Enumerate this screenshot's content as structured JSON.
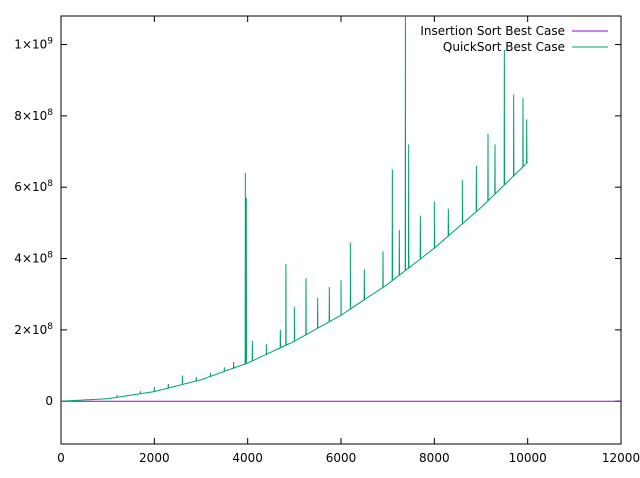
{
  "chart_data": {
    "type": "line",
    "title": "",
    "xlabel": "",
    "ylabel": "",
    "xlim": [
      0,
      12000
    ],
    "ylim": [
      -120000000,
      1080000000
    ],
    "grid": false,
    "legend_position": "top-right",
    "x_ticks": [
      {
        "value": 0,
        "label": "0"
      },
      {
        "value": 2000,
        "label": "2000"
      },
      {
        "value": 4000,
        "label": "4000"
      },
      {
        "value": 6000,
        "label": "6000"
      },
      {
        "value": 8000,
        "label": "8000"
      },
      {
        "value": 10000,
        "label": "10000"
      },
      {
        "value": 12000,
        "label": "12000"
      }
    ],
    "y_ticks": [
      {
        "value": 0,
        "label": "0"
      },
      {
        "value": 200000000,
        "mantissa": "2",
        "base": "×10",
        "exp": "8"
      },
      {
        "value": 400000000,
        "mantissa": "4",
        "base": "×10",
        "exp": "8"
      },
      {
        "value": 600000000,
        "mantissa": "6",
        "base": "×10",
        "exp": "8"
      },
      {
        "value": 800000000,
        "mantissa": "8",
        "base": "×10",
        "exp": "8"
      },
      {
        "value": 1000000000,
        "mantissa": "1",
        "base": "×10",
        "exp": "9"
      }
    ],
    "series": [
      {
        "name": "Insertion Sort Best Case",
        "color": "#9400d3",
        "x": [
          0,
          12000
        ],
        "y": [
          0,
          0
        ]
      },
      {
        "name": "QuickSort Best Case",
        "color": "#009e73",
        "x": [
          0,
          1000,
          2000,
          3000,
          4000,
          5000,
          6000,
          7000,
          8000,
          9000,
          10000
        ],
        "y": [
          0,
          7000000,
          27000000,
          60000000,
          107000000,
          168000000,
          241000000,
          328000000,
          429000000,
          543000000,
          670000000
        ],
        "spikes": [
          {
            "x": 1200,
            "y": 18000000
          },
          {
            "x": 1700,
            "y": 28000000
          },
          {
            "x": 2000,
            "y": 40000000
          },
          {
            "x": 2300,
            "y": 48000000
          },
          {
            "x": 2600,
            "y": 72000000
          },
          {
            "x": 2900,
            "y": 68000000
          },
          {
            "x": 3200,
            "y": 80000000
          },
          {
            "x": 3500,
            "y": 95000000
          },
          {
            "x": 3700,
            "y": 110000000
          },
          {
            "x": 3950,
            "y": 640000000
          },
          {
            "x": 3970,
            "y": 570000000
          },
          {
            "x": 4100,
            "y": 170000000
          },
          {
            "x": 4400,
            "y": 160000000
          },
          {
            "x": 4700,
            "y": 200000000
          },
          {
            "x": 4820,
            "y": 385000000
          },
          {
            "x": 5000,
            "y": 265000000
          },
          {
            "x": 5250,
            "y": 345000000
          },
          {
            "x": 5500,
            "y": 290000000
          },
          {
            "x": 5750,
            "y": 320000000
          },
          {
            "x": 6000,
            "y": 340000000
          },
          {
            "x": 6200,
            "y": 445000000
          },
          {
            "x": 6500,
            "y": 370000000
          },
          {
            "x": 6900,
            "y": 420000000
          },
          {
            "x": 7100,
            "y": 650000000
          },
          {
            "x": 7250,
            "y": 480000000
          },
          {
            "x": 7380,
            "y": 1080000000
          },
          {
            "x": 7450,
            "y": 720000000
          },
          {
            "x": 7700,
            "y": 520000000
          },
          {
            "x": 8000,
            "y": 560000000
          },
          {
            "x": 8300,
            "y": 540000000
          },
          {
            "x": 8600,
            "y": 620000000
          },
          {
            "x": 8900,
            "y": 660000000
          },
          {
            "x": 9150,
            "y": 750000000
          },
          {
            "x": 9300,
            "y": 720000000
          },
          {
            "x": 9500,
            "y": 985000000
          },
          {
            "x": 9700,
            "y": 860000000
          },
          {
            "x": 9900,
            "y": 850000000
          },
          {
            "x": 9980,
            "y": 790000000
          }
        ]
      }
    ]
  }
}
